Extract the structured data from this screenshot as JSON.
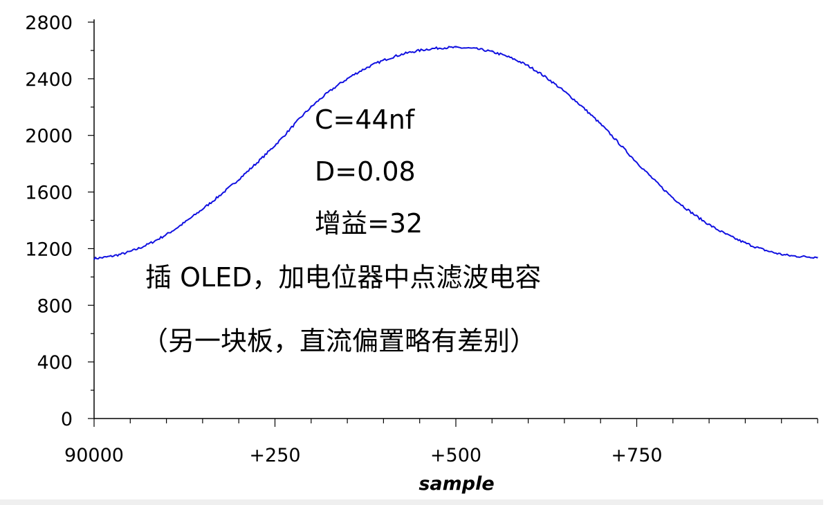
{
  "chart_data": {
    "type": "line",
    "title": "",
    "xlabel": "sample",
    "ylabel": "",
    "xlim": [
      90000,
      91000
    ],
    "ylim": [
      0,
      2800
    ],
    "x_ticks": [
      {
        "value": 90000,
        "label": "90000"
      },
      {
        "value": 90250,
        "label": "+250"
      },
      {
        "value": 90500,
        "label": "+500"
      },
      {
        "value": 90750,
        "label": "+750"
      }
    ],
    "y_ticks": [
      {
        "value": 2800,
        "label": "2800"
      },
      {
        "value": 2400,
        "label": "2400"
      },
      {
        "value": 2000,
        "label": "2000"
      },
      {
        "value": 1600,
        "label": "1600"
      },
      {
        "value": 1200,
        "label": "1200"
      },
      {
        "value": 800,
        "label": "800"
      },
      {
        "value": 400,
        "label": "400"
      },
      {
        "value": 0,
        "label": "0"
      }
    ],
    "series": [
      {
        "color": "#1010e0",
        "x": [
          90000,
          90050,
          90100,
          90150,
          90200,
          90250,
          90300,
          90350,
          90400,
          90450,
          90500,
          90550,
          90600,
          90650,
          90700,
          90750,
          90800,
          90850,
          90900,
          90950,
          91000
        ],
        "y": [
          1130,
          1180,
          1300,
          1480,
          1690,
          1930,
          2200,
          2400,
          2530,
          2600,
          2620,
          2590,
          2490,
          2310,
          2080,
          1810,
          1560,
          1370,
          1240,
          1160,
          1140
        ]
      }
    ],
    "grid": false,
    "legend": "none",
    "annotations": [
      "C=44nf",
      "D=0.08",
      "增益=32",
      "插 OLED，加电位器中点滤波电容",
      "（另一块板，直流偏置略有差别）"
    ]
  }
}
